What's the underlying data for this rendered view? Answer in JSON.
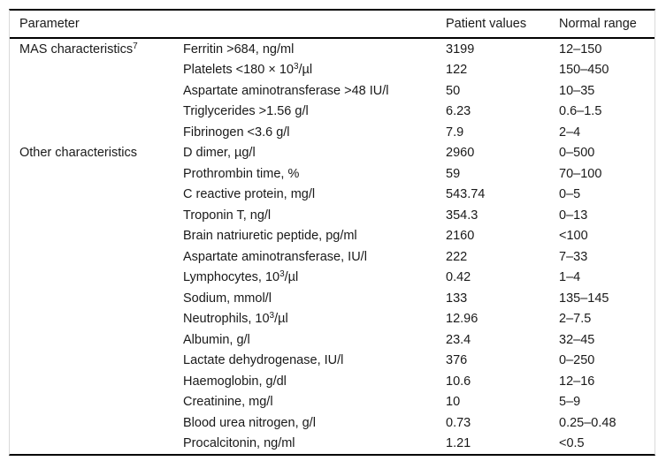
{
  "table": {
    "header": {
      "parameter": "Parameter",
      "patient_values": "Patient values",
      "normal_range": "Normal range"
    },
    "groups": [
      {
        "label": "MAS characteristics",
        "label_sup": "7",
        "rows": [
          {
            "parameter": "Ferritin >684, ng/ml",
            "patient": "3199",
            "normal": "12–150"
          },
          {
            "parameter": "Platelets <180 × 10",
            "parameter_sup": "3",
            "parameter_end": "/µl",
            "patient": "122",
            "normal": "150–450"
          },
          {
            "parameter": "Aspartate aminotransferase >48 IU/l",
            "patient": "50",
            "normal": "10–35"
          },
          {
            "parameter": "Triglycerides >1.56 g/l",
            "patient": "6.23",
            "normal": "0.6–1.5"
          },
          {
            "parameter": "Fibrinogen <3.6 g/l",
            "patient": "7.9",
            "normal": "2–4"
          }
        ]
      },
      {
        "label": "Other characteristics",
        "label_sup": "",
        "rows": [
          {
            "parameter": "D dimer, µg/l",
            "patient": "2960",
            "normal": "0–500"
          },
          {
            "parameter": "Prothrombin time, %",
            "patient": "59",
            "normal": "70–100"
          },
          {
            "parameter": "C reactive protein, mg/l",
            "patient": "543.74",
            "normal": "0–5"
          },
          {
            "parameter": "Troponin T, ng/l",
            "patient": "354.3",
            "normal": "0–13"
          },
          {
            "parameter": "Brain natriuretic peptide, pg/ml",
            "patient": "2160",
            "normal": "<100"
          },
          {
            "parameter": "Aspartate aminotransferase, IU/l",
            "patient": "222",
            "normal": "7–33"
          },
          {
            "parameter": "Lymphocytes, 10",
            "parameter_sup": "3",
            "parameter_end": "/µl",
            "patient": "0.42",
            "normal": "1–4"
          },
          {
            "parameter": "Sodium, mmol/l",
            "patient": "133",
            "normal": "135–145"
          },
          {
            "parameter": "Neutrophils, 10",
            "parameter_sup": "3",
            "parameter_end": "/µl",
            "patient": "12.96",
            "normal": "2–7.5"
          },
          {
            "parameter": "Albumin, g/l",
            "patient": "23.4",
            "normal": "32–45"
          },
          {
            "parameter": "Lactate dehydrogenase, IU/l",
            "patient": "376",
            "normal": "0–250"
          },
          {
            "parameter": "Haemoglobin, g/dl",
            "patient": "10.6",
            "normal": "12–16"
          },
          {
            "parameter": "Creatinine, mg/l",
            "patient": "10",
            "normal": "5–9"
          },
          {
            "parameter": "Blood urea nitrogen, g/l",
            "patient": "0.73",
            "normal": "0.25–0.48"
          },
          {
            "parameter": "Procalcitonin, ng/ml",
            "patient": "1.21",
            "normal": "<0.5"
          }
        ]
      }
    ]
  }
}
